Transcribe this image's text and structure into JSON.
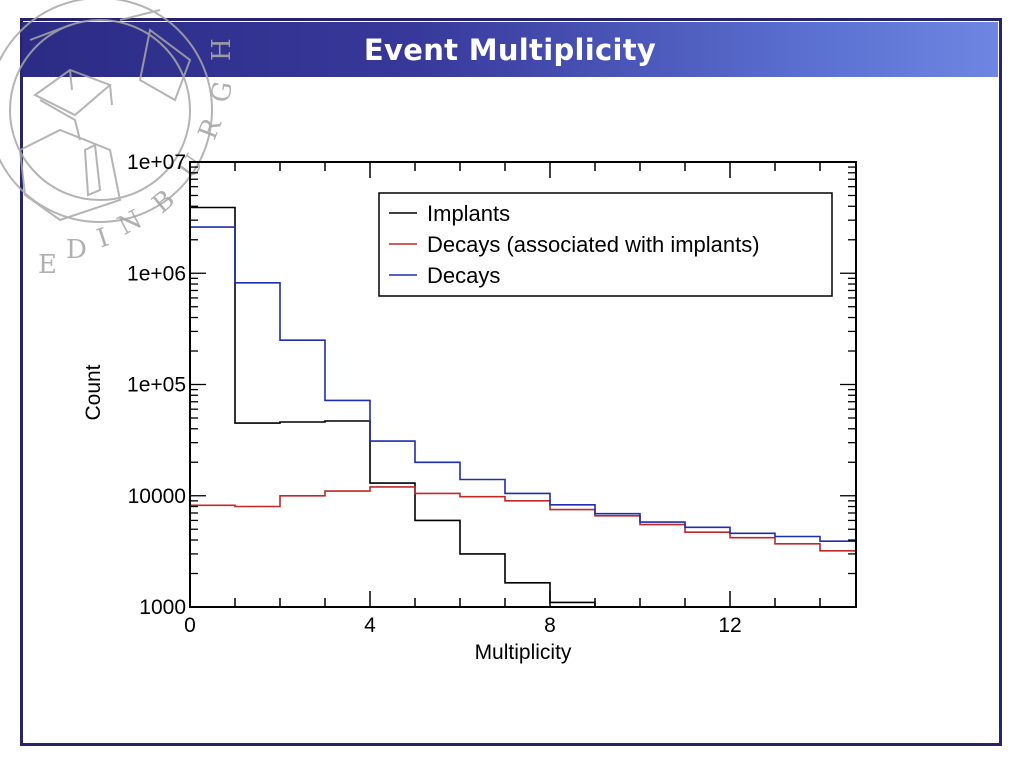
{
  "slide": {
    "title": "Event Multiplicity",
    "watermark_text": "EDINBURGH",
    "colors": {
      "frame": "#27246a",
      "title_bar_start": "#2c2c86",
      "title_bar_end": "#6e86e2",
      "seal": "#9a9a9a"
    }
  },
  "chart_data": {
    "type": "line",
    "title": "",
    "xlabel": "Multiplicity",
    "ylabel": "Count",
    "xlim": [
      0,
      14.8
    ],
    "ylim": [
      1000,
      10000000
    ],
    "yscale": "log",
    "grid": false,
    "legend_position": "top-right",
    "x_ticks": [
      {
        "value": 0,
        "label": "0"
      },
      {
        "value": 4,
        "label": "4"
      },
      {
        "value": 8,
        "label": "8"
      },
      {
        "value": 12,
        "label": "12"
      }
    ],
    "y_ticks": [
      {
        "value": 1000,
        "label": "1000"
      },
      {
        "value": 10000,
        "label": "10000"
      },
      {
        "value": 100000,
        "label": "1e+05"
      },
      {
        "value": 1000000,
        "label": "1e+06"
      },
      {
        "value": 10000000,
        "label": "1e+07"
      }
    ],
    "bin_edges": [
      0,
      1,
      2,
      3,
      4,
      5,
      6,
      7,
      8,
      9,
      10,
      11,
      12,
      13,
      14,
      14.8
    ],
    "series": [
      {
        "name": "Implants",
        "color": "#000000",
        "values": [
          3900000,
          45000,
          46000,
          47000,
          13000,
          6000,
          3000,
          1650,
          1100,
          1000,
          1000,
          1000,
          1000,
          1000,
          1000
        ]
      },
      {
        "name": "Decays (associated with implants)",
        "color": "#c0282a",
        "values": [
          8200,
          8000,
          10000,
          11000,
          12000,
          10500,
          9800,
          9000,
          7500,
          6600,
          5500,
          4700,
          4200,
          3700,
          3200
        ]
      },
      {
        "name": "Decays",
        "color": "#1f2db0",
        "values": [
          2600000,
          820000,
          250000,
          72000,
          31000,
          20000,
          14000,
          10500,
          8300,
          6900,
          5800,
          5200,
          4600,
          4300,
          3900
        ]
      }
    ]
  }
}
